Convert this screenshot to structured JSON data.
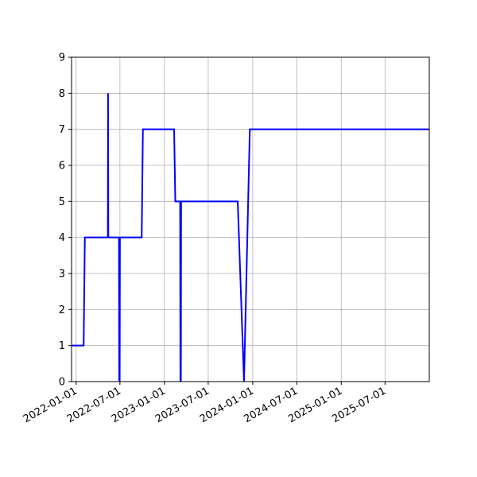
{
  "chart_data": {
    "type": "line",
    "title": "",
    "xlabel": "",
    "ylabel": "",
    "xlim": [
      "2021-12-13",
      "2025-12-31"
    ],
    "ylim": [
      0,
      9
    ],
    "grid": true,
    "line_color": "#0000ff",
    "x_ticks": [
      "2022-01-01",
      "2022-07-01",
      "2023-01-01",
      "2023-07-01",
      "2024-01-01",
      "2024-07-01",
      "2025-01-01",
      "2025-07-01"
    ],
    "y_ticks": [
      0,
      1,
      2,
      3,
      4,
      5,
      6,
      7,
      8,
      9
    ],
    "series": [
      {
        "x": [
          "2021-12-13",
          "2022-02-01",
          "2022-02-06",
          "2022-05-12",
          "2022-05-13",
          "2022-05-14",
          "2022-06-27",
          "2022-06-28",
          "2022-06-29",
          "2022-06-30",
          "2022-07-01",
          "2022-07-02",
          "2022-09-29",
          "2022-10-04",
          "2023-02-10",
          "2023-02-15",
          "2023-03-07",
          "2023-03-08",
          "2023-03-09",
          "2023-03-10",
          "2023-03-11",
          "2023-03-12",
          "2023-10-31",
          "2023-11-26",
          "2023-12-20",
          "2025-12-31"
        ],
        "y": [
          1,
          1,
          4,
          4,
          8,
          4,
          4,
          0,
          4,
          0,
          4,
          4,
          4,
          7,
          7,
          5,
          5,
          0,
          5,
          0,
          5,
          5,
          5,
          0,
          7,
          7
        ]
      }
    ]
  }
}
